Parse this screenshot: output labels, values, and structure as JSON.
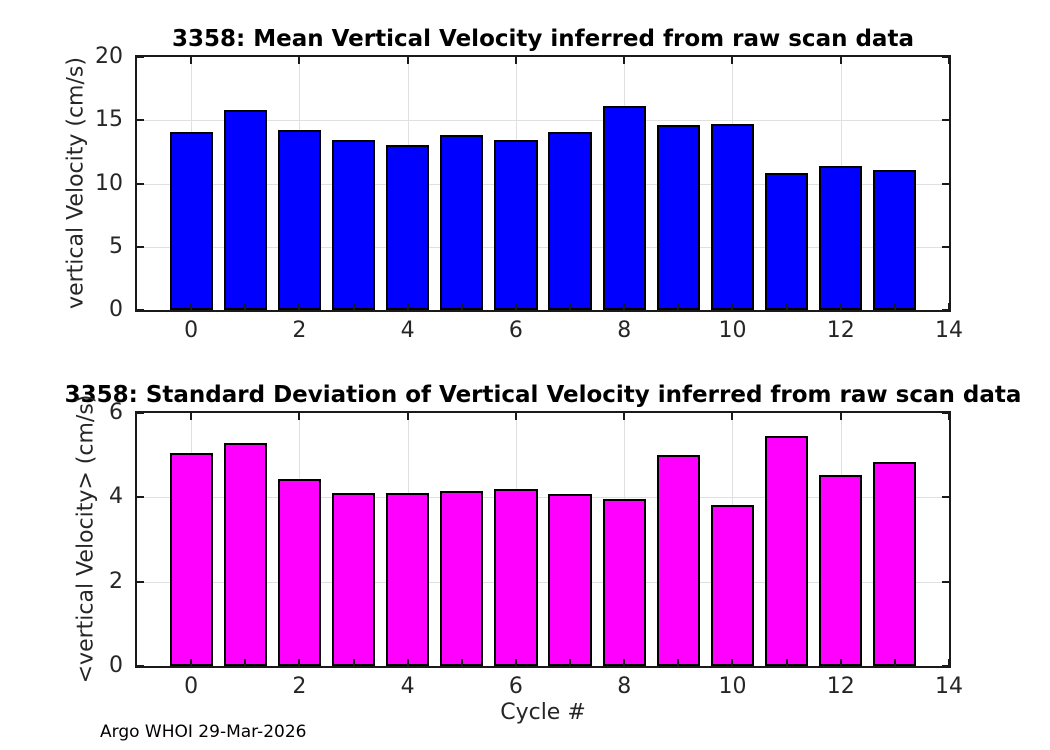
{
  "figure": {
    "footer_text": "Argo WHOI 29-Mar-2026",
    "background_color": "#ffffff",
    "axis_color": "#1a1a1a",
    "grid_color": "#e0e0e0",
    "tick_label_color": "#262626"
  },
  "chart_data": [
    {
      "type": "bar",
      "title": "3358: Mean Vertical Velocity inferred from raw scan data",
      "xlabel": "",
      "ylabel": "vertical Velocity (cm/s)",
      "categories": [
        0,
        1,
        2,
        3,
        4,
        5,
        6,
        7,
        8,
        9,
        10,
        11,
        12,
        13
      ],
      "values": [
        14.05,
        15.8,
        14.25,
        13.45,
        13.05,
        13.85,
        13.45,
        14.05,
        16.1,
        14.65,
        14.7,
        10.8,
        11.4,
        11.05
      ],
      "bar_color": "#0000ff",
      "bar_edge_color": "#000000",
      "bar_rel_width": 0.8,
      "xlim": [
        -1,
        14
      ],
      "ylim": [
        0,
        20
      ],
      "yticks": [
        0,
        5,
        10,
        15,
        20
      ],
      "xticks_labeled": [
        0,
        2,
        4,
        6,
        8,
        10,
        12,
        14
      ],
      "xticks_all": [
        0,
        1,
        2,
        3,
        4,
        5,
        6,
        7,
        8,
        9,
        10,
        11,
        12,
        13,
        14
      ],
      "grid": "on",
      "legend": "none"
    },
    {
      "type": "bar",
      "title": "3358: Standard Deviation of Vertical Velocity inferred from raw scan data",
      "xlabel": "Cycle #",
      "ylabel": "<vertical Velocity> (cm/s)",
      "categories": [
        0,
        1,
        2,
        3,
        4,
        5,
        6,
        7,
        8,
        9,
        10,
        11,
        12,
        13
      ],
      "values": [
        5.05,
        5.3,
        4.44,
        4.11,
        4.11,
        4.16,
        4.21,
        4.08,
        3.95,
        5.0,
        3.81,
        5.46,
        4.52,
        4.85
      ],
      "bar_color": "#ff00ff",
      "bar_edge_color": "#000000",
      "bar_rel_width": 0.8,
      "xlim": [
        -1,
        14
      ],
      "ylim": [
        0,
        6
      ],
      "yticks": [
        0,
        2,
        4,
        6
      ],
      "xticks_labeled": [
        0,
        2,
        4,
        6,
        8,
        10,
        12,
        14
      ],
      "xticks_all": [
        0,
        1,
        2,
        3,
        4,
        5,
        6,
        7,
        8,
        9,
        10,
        11,
        12,
        13,
        14
      ],
      "grid": "on",
      "legend": "none"
    }
  ]
}
